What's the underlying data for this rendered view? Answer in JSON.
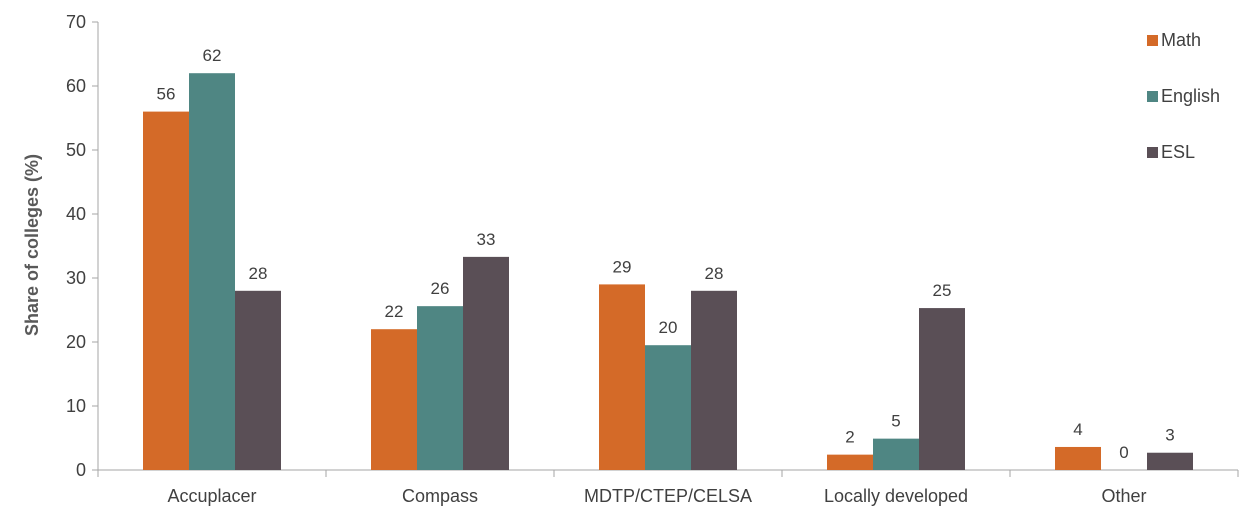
{
  "chart_data": {
    "type": "bar",
    "ylabel": "Share of colleges (%)",
    "xlabel": "",
    "ylim": [
      0,
      70
    ],
    "yticks": [
      0,
      10,
      20,
      30,
      40,
      50,
      60,
      70
    ],
    "grid": false,
    "legend_position": "top-right",
    "categories": [
      "Accuplacer",
      "Compass",
      "MDTP/CTEP/CELSA",
      "Locally developed",
      "Other"
    ],
    "series": [
      {
        "name": "Math",
        "color": "#d46a28",
        "values": [
          56,
          22,
          29,
          2.4,
          3.6
        ],
        "labels": [
          "56",
          "22",
          "29",
          "2",
          "4"
        ]
      },
      {
        "name": "English",
        "color": "#4f8683",
        "values": [
          62,
          25.6,
          19.5,
          4.9,
          0
        ],
        "labels": [
          "62",
          "26",
          "20",
          "5",
          "0"
        ]
      },
      {
        "name": "ESL",
        "color": "#5a4f56",
        "values": [
          28,
          33.3,
          28,
          25.3,
          2.7
        ],
        "labels": [
          "28",
          "33",
          "28",
          "25",
          "3"
        ]
      }
    ]
  }
}
